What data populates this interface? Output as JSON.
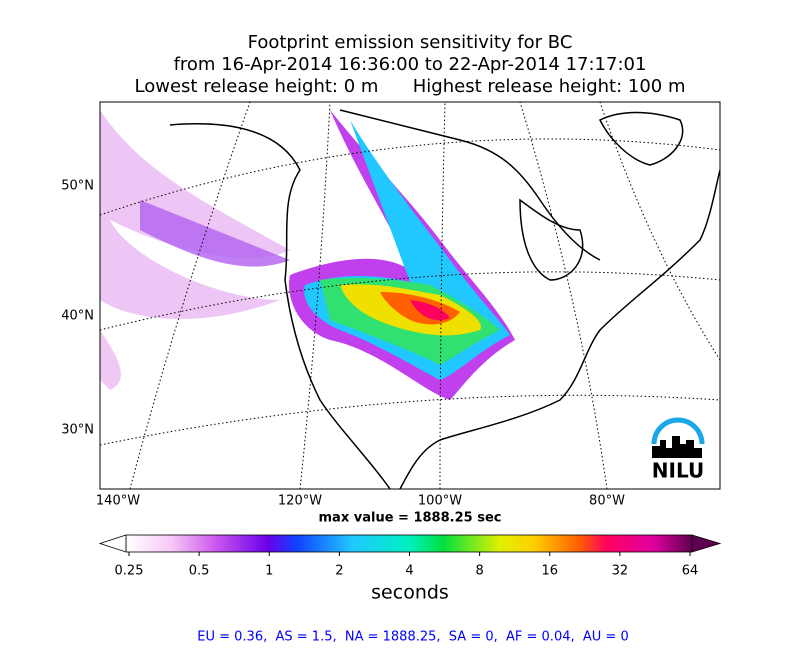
{
  "header": {
    "title_lines": [
      "Footprint emission sensitivity for BC",
      "from 16-Apr-2014 16:36:00 to 22-Apr-2014 17:17:01",
      "Lowest release height: 0 m      Highest release height: 100 m"
    ]
  },
  "map": {
    "lat_labels": [
      "50°N",
      "40°N",
      "30°N"
    ],
    "lon_labels": [
      "140°W",
      "120°W",
      "100°W",
      "80°W"
    ],
    "logo": "NILU"
  },
  "max_value_text": "max value = 1888.25 sec",
  "colorbar": {
    "ticks": [
      0.25,
      0.5,
      1,
      2,
      4,
      8,
      16,
      32,
      64
    ],
    "label": "seconds"
  },
  "footer": "EU = 0.36,  AS = 1.5,  NA = 1888.25,  SA = 0,  AF = 0.04,  AU = 0"
}
